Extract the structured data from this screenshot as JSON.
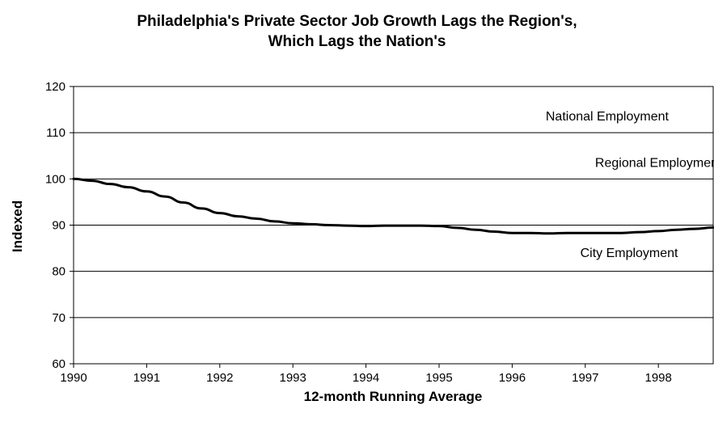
{
  "chart_data": {
    "type": "line",
    "title": [
      "Philadelphia's Private Sector Job Growth Lags the Region's,",
      "Which Lags the Nation's"
    ],
    "xlabel": "12-month Running Average",
    "ylabel": "Indexed",
    "xlim": [
      1990,
      1998.75
    ],
    "ylim": [
      60,
      120
    ],
    "y_ticks": [
      60,
      70,
      80,
      90,
      100,
      110,
      120
    ],
    "x_ticks": [
      1990,
      1991,
      1992,
      1993,
      1994,
      1995,
      1996,
      1997,
      1998
    ],
    "grid": "horizontal",
    "series": [
      {
        "name": "City Employment",
        "color": "#000000",
        "x": [
          1990.0,
          1990.25,
          1990.5,
          1990.75,
          1991.0,
          1991.25,
          1991.5,
          1991.75,
          1992.0,
          1992.25,
          1992.5,
          1992.75,
          1993.0,
          1993.25,
          1993.5,
          1993.75,
          1994.0,
          1994.25,
          1994.5,
          1994.75,
          1995.0,
          1995.25,
          1995.5,
          1995.75,
          1996.0,
          1996.25,
          1996.5,
          1996.75,
          1997.0,
          1997.25,
          1997.5,
          1997.75,
          1998.0,
          1998.25,
          1998.5,
          1998.75
        ],
        "y": [
          100.0,
          99.6,
          98.9,
          98.2,
          97.3,
          96.2,
          94.9,
          93.6,
          92.6,
          91.9,
          91.4,
          90.8,
          90.4,
          90.2,
          90.0,
          89.9,
          89.8,
          89.9,
          89.9,
          89.9,
          89.8,
          89.4,
          89.0,
          88.6,
          88.3,
          88.3,
          88.2,
          88.3,
          88.3,
          88.3,
          88.3,
          88.5,
          88.7,
          89.0,
          89.2,
          89.5
        ]
      }
    ],
    "annotations": [
      {
        "text": "National Employment",
        "x": 1997.3,
        "y": 113.5
      },
      {
        "text": "Regional Employment",
        "x": 1998.0,
        "y": 103.5
      },
      {
        "text": "City Employment",
        "x": 1997.6,
        "y": 84.0
      }
    ]
  }
}
